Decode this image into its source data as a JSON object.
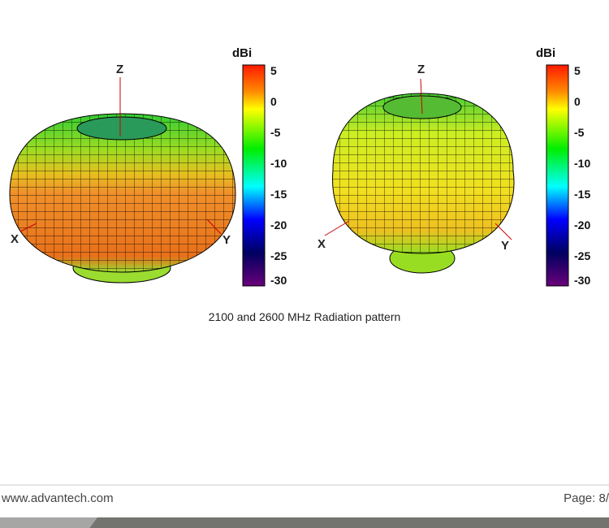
{
  "figures": [
    {
      "axes": {
        "z": "Z",
        "x": "X",
        "y": "Y"
      },
      "colorbar": {
        "unit": "dBi",
        "ticks": [
          "5",
          "0",
          "-5",
          "-10",
          "-15",
          "-20",
          "-25",
          "-30"
        ]
      }
    },
    {
      "axes": {
        "z": "Z",
        "x": "X",
        "y": "Y"
      },
      "colorbar": {
        "unit": "dBi",
        "ticks": [
          "5",
          "0",
          "-5",
          "-10",
          "-15",
          "-20",
          "-25",
          "-30"
        ]
      }
    }
  ],
  "caption": "2100 and 2600 MHz Radiation pattern",
  "footer": {
    "website": "www.advantech.com",
    "page": "Page: 8/"
  },
  "colors": {
    "colorbar_stops": [
      "#ff0000",
      "#ff8000",
      "#ffff00",
      "#00ff00",
      "#00ffff",
      "#0000ff",
      "#000066",
      "#660099"
    ]
  }
}
